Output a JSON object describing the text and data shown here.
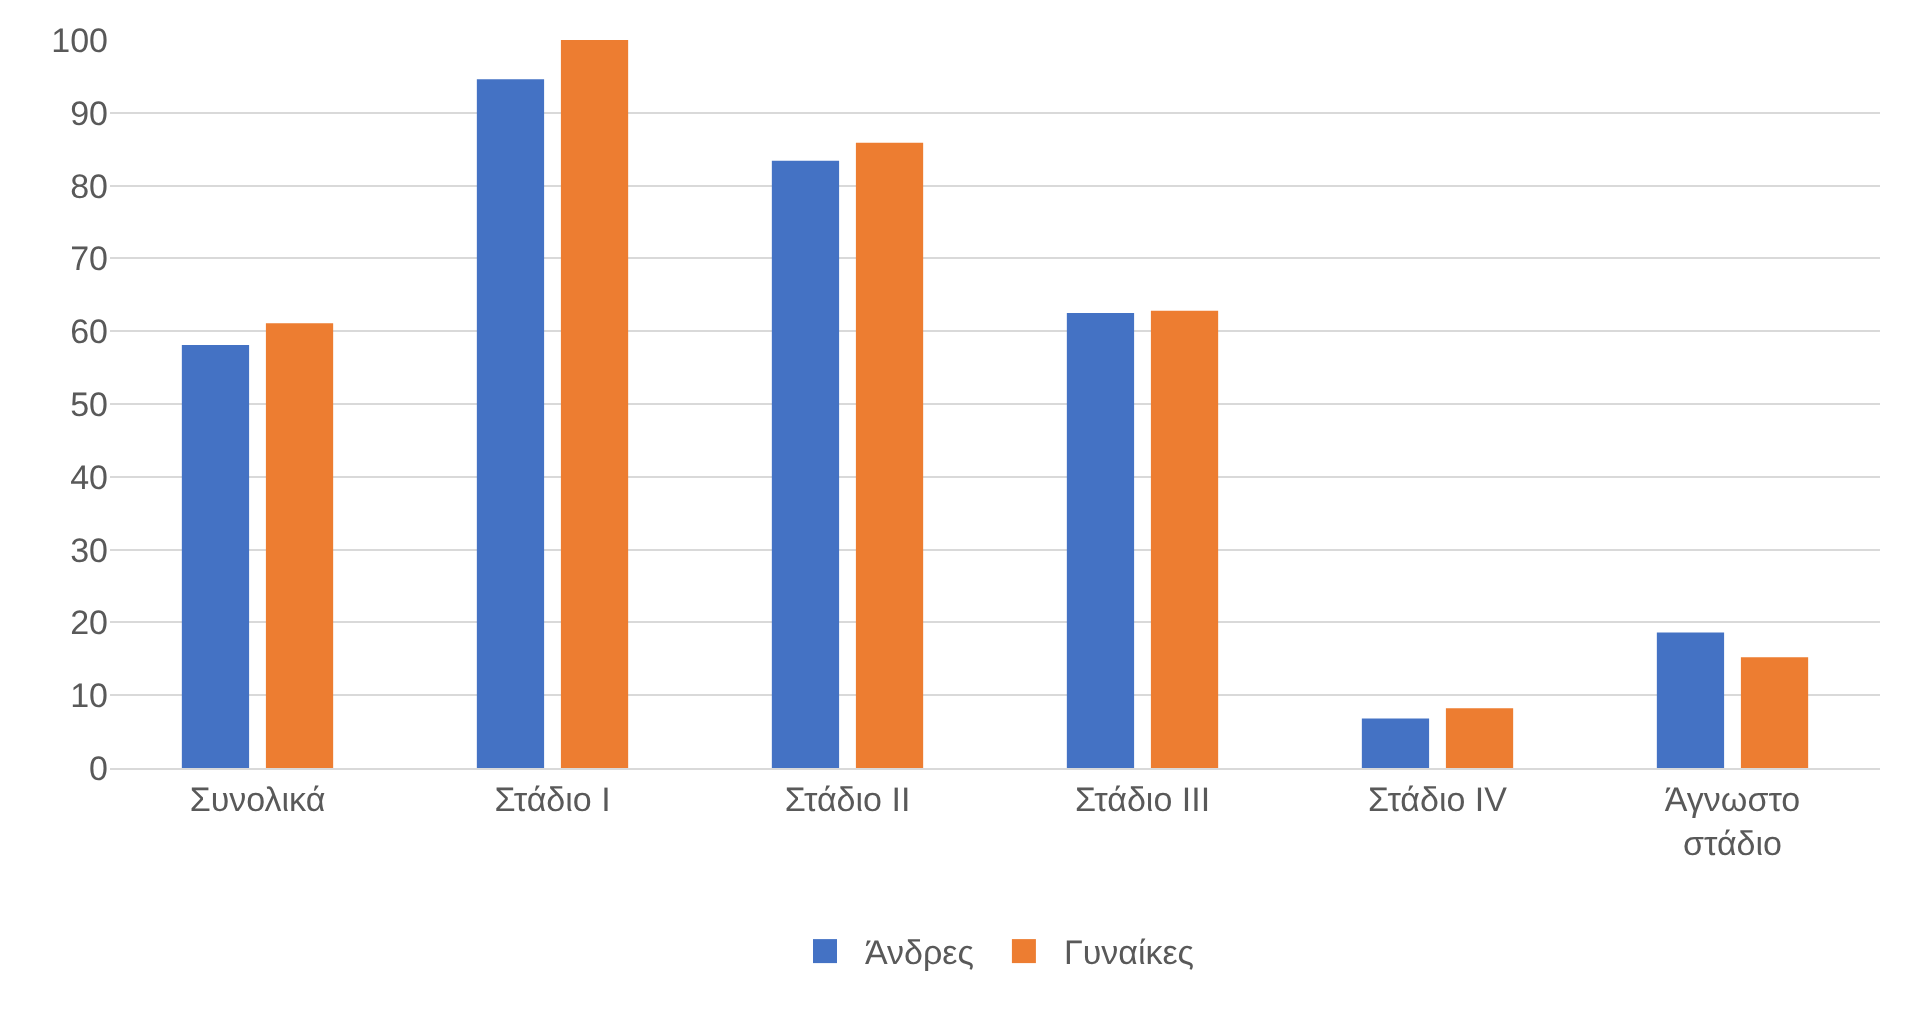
{
  "chart_data": {
    "type": "bar",
    "categories": [
      "Συνολικά",
      "Στάδιο I",
      "Στάδιο II",
      "Στάδιο III",
      "Στάδιο IV",
      "Άγνωστο στάδιο"
    ],
    "series": [
      {
        "name": "Άνδρες",
        "color": "#4472c4",
        "values": [
          58.1,
          94.6,
          83.4,
          62.5,
          6.8,
          18.6
        ]
      },
      {
        "name": "Γυναίκες",
        "color": "#ed7d31",
        "values": [
          61.1,
          100,
          85.9,
          62.8,
          8.2,
          15.2
        ]
      }
    ],
    "ylim": [
      0,
      100
    ],
    "yticks": [
      0,
      10,
      20,
      30,
      40,
      50,
      60,
      70,
      80,
      90,
      100
    ],
    "grid": "y",
    "legend": "bottom"
  }
}
